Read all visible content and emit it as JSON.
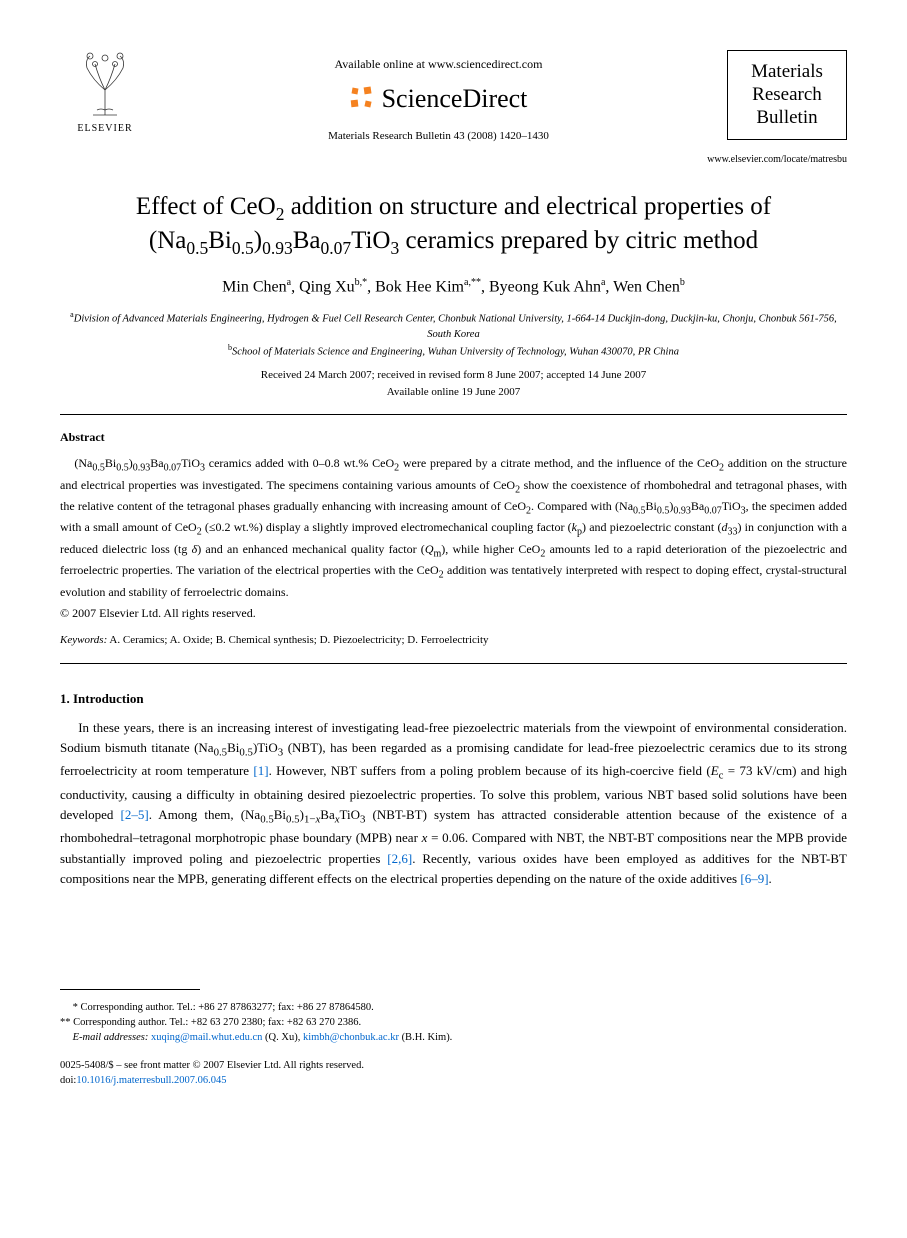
{
  "header": {
    "elsevier_label": "ELSEVIER",
    "available_online": "Available online at www.sciencedirect.com",
    "sciencedirect": "ScienceDirect",
    "journal_ref": "Materials Research Bulletin 43 (2008) 1420–1430",
    "journal_box_line1": "Materials",
    "journal_box_line2": "Research",
    "journal_box_line3": "Bulletin",
    "journal_url": "www.elsevier.com/locate/matresbu"
  },
  "title_parts": {
    "p1": "Effect of CeO",
    "p2": " addition on structure and electrical properties of (Na",
    "p3": "Bi",
    "p4": ")",
    "p5": "Ba",
    "p6": "TiO",
    "p7": " ceramics prepared by citric method"
  },
  "authors": {
    "a1": "Min Chen",
    "a1s": "a",
    "a2": "Qing Xu",
    "a2s": "b,",
    "a2s2": "*",
    "a3": "Bok Hee Kim",
    "a3s": "a,",
    "a3s2": "**",
    "a4": "Byeong Kuk Ahn",
    "a4s": "a",
    "a5": "Wen Chen",
    "a5s": "b"
  },
  "affiliations": {
    "a_sup": "a",
    "a_text": "Division of Advanced Materials Engineering, Hydrogen & Fuel Cell Research Center, Chonbuk National University, 1-664-14 Duckjin-dong, Duckjin-ku, Chonju, Chonbuk 561-756, South Korea",
    "b_sup": "b",
    "b_text": "School of Materials Science and Engineering, Wuhan University of Technology, Wuhan 430070, PR China"
  },
  "dates": {
    "line1": "Received 24 March 2007; received in revised form 8 June 2007; accepted 14 June 2007",
    "line2": "Available online 19 June 2007"
  },
  "abstract": {
    "label": "Abstract",
    "body_html": "(Na<sub>0.5</sub>Bi<sub>0.5</sub>)<sub>0.93</sub>Ba<sub>0.07</sub>TiO<sub>3</sub> ceramics added with 0–0.8 wt.% CeO<sub>2</sub> were prepared by a citrate method, and the influence of the CeO<sub>2</sub> addition on the structure and electrical properties was investigated. The specimens containing various amounts of CeO<sub>2</sub> show the coexistence of rhombohedral and tetragonal phases, with the relative content of the tetragonal phases gradually enhancing with increasing amount of CeO<sub>2</sub>. Compared with (Na<sub>0.5</sub>Bi<sub>0.5</sub>)<sub>0.93</sub>Ba<sub>0.07</sub>TiO<sub>3</sub>, the specimen added with a small amount of CeO<sub>2</sub> (≤0.2 wt.%) display a slightly improved electromechanical coupling factor (<i>k</i><sub>p</sub>) and piezoelectric constant (<i>d</i><sub>33</sub>) in conjunction with a reduced dielectric loss (tg <i>δ</i>) and an enhanced mechanical quality factor (<i>Q</i><sub>m</sub>), while higher CeO<sub>2</sub> amounts led to a rapid deterioration of the piezoelectric and ferroelectric properties. The variation of the electrical properties with the CeO<sub>2</sub> addition was tentatively interpreted with respect to doping effect, crystal-structural evolution and stability of ferroelectric domains.",
    "copyright": "© 2007 Elsevier Ltd. All rights reserved."
  },
  "keywords": {
    "label": "Keywords:",
    "text": " A. Ceramics; A. Oxide; B. Chemical synthesis; D. Piezoelectricity; D. Ferroelectricity"
  },
  "section1": {
    "heading": "1. Introduction",
    "body_html": "In these years, there is an increasing interest of investigating lead-free piezoelectric materials from the viewpoint of environmental consideration. Sodium bismuth titanate (Na<sub>0.5</sub>Bi<sub>0.5</sub>)TiO<sub>3</sub> (NBT), has been regarded as a promising candidate for lead-free piezoelectric ceramics due to its strong ferroelectricity at room temperature <span class=\"link\">[1]</span>. However, NBT suffers from a poling problem because of its high-coercive field (<i>E</i><sub>c</sub> = 73 kV/cm) and high conductivity, causing a difficulty in obtaining desired piezoelectric properties. To solve this problem, various NBT based solid solutions have been developed <span class=\"link\">[2–5]</span>. Among them, (Na<sub>0.5</sub>Bi<sub>0.5</sub>)<sub>1−<i>x</i></sub>Ba<sub><i>x</i></sub>TiO<sub>3</sub> (NBT-BT) system has attracted considerable attention because of the existence of a rhombohedral–tetragonal morphotropic phase boundary (MPB) near <i>x</i> = 0.06. Compared with NBT, the NBT-BT compositions near the MPB provide substantially improved poling and piezoelectric properties <span class=\"link\">[2,6]</span>. Recently, various oxides have been employed as additives for the NBT-BT compositions near the MPB, generating different effects on the electrical properties depending on the nature of the oxide additives <span class=\"link\">[6–9]</span>."
  },
  "footnotes": {
    "f1": "* Corresponding author. Tel.: +86 27 87863277; fax: +86 27 87864580.",
    "f2": "** Corresponding author. Tel.: +82 63 270 2380; fax: +82 63 270 2386.",
    "email_label": "E-mail addresses:",
    "email1": "xuqing@mail.whut.edu.cn",
    "email1_tail": " (Q. Xu), ",
    "email2": "kimbh@chonbuk.ac.kr",
    "email2_tail": " (B.H. Kim)."
  },
  "bottom": {
    "issn": "0025-5408/$ – see front matter © 2007 Elsevier Ltd. All rights reserved.",
    "doi_label": "doi:",
    "doi": "10.1016/j.materresbull.2007.06.045"
  },
  "colors": {
    "link": "#0066cc",
    "sd_orange": "#f58220",
    "text": "#000000"
  }
}
